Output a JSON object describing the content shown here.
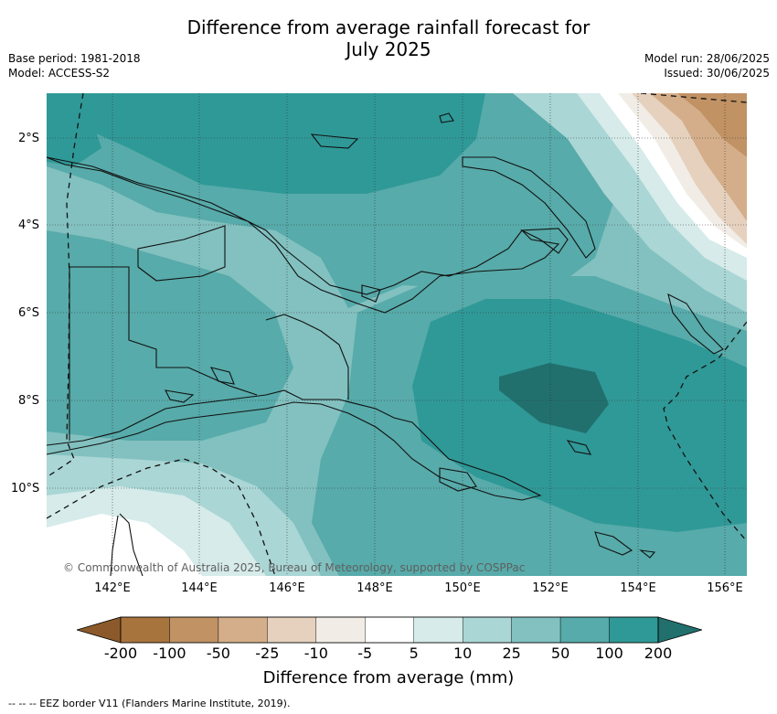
{
  "title_line1": "Difference from average rainfall forecast for",
  "title_line2": "July 2025",
  "base_period": "Base period: 1981-2018",
  "model": "Model: ACCESS-S2",
  "model_run": "Model run: 28/06/2025",
  "issued": "Issued: 30/06/2025",
  "lat_ticks": [
    "2°S",
    "4°S",
    "6°S",
    "8°S",
    "10°S"
  ],
  "lon_ticks": [
    "142°E",
    "144°E",
    "146°E",
    "148°E",
    "150°E",
    "152°E",
    "154°E",
    "156°E"
  ],
  "copyright": "© Commonwealth of Australia 2025, Bureau of Meteorology, supported by COSPPac",
  "colorbar": {
    "label": "Difference from average (mm)",
    "ticks": [
      "-200",
      "-100",
      "-50",
      "-25",
      "-10",
      "-5",
      "5",
      "10",
      "25",
      "50",
      "100",
      "200"
    ],
    "colors": [
      "#8c5a2a",
      "#a8743d",
      "#c09264",
      "#d4ae8a",
      "#e5d1be",
      "#f1ede6",
      "#ffffff",
      "#d6ebea",
      "#aad6d5",
      "#82c1c0",
      "#57abaa",
      "#2f9997",
      "#21706e"
    ]
  },
  "footnote": "--  --  -- EEZ border V11 (Flanders Marine Institute, 2019)."
}
